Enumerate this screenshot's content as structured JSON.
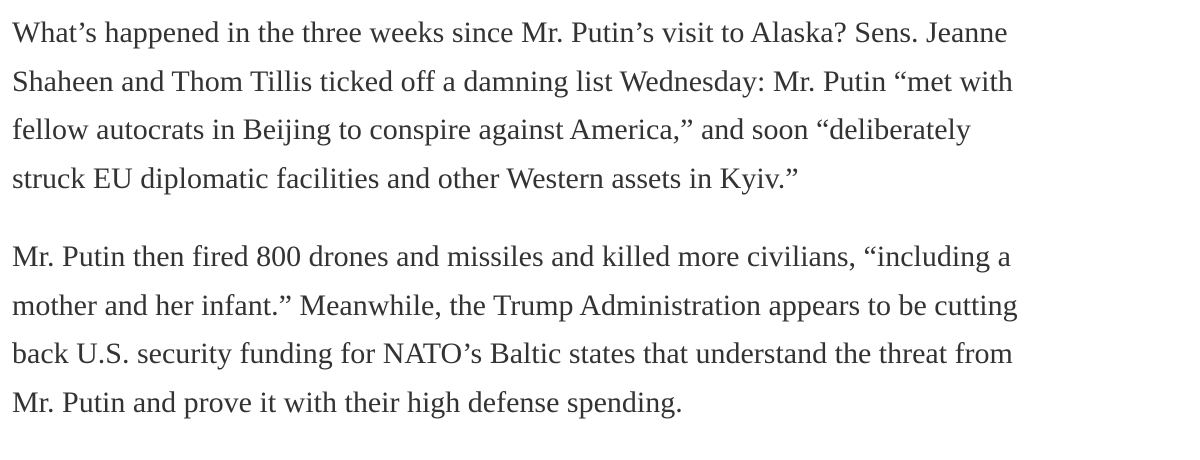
{
  "article": {
    "paragraphs": [
      {
        "lines": [
          "What’s happened in the three weeks since Mr. Putin’s visit to Alaska? Sens. Jeanne",
          "Shaheen and Thom Tillis ticked off a damning list Wednesday: Mr. Putin “met with",
          "fellow autocrats in Beijing to conspire against America,” and soon “deliberately",
          "struck EU diplomatic facilities and other Western assets in Kyiv.”"
        ]
      },
      {
        "lines": [
          "Mr. Putin then fired 800 drones and missiles and killed more civilians, “including a",
          "mother and her infant.” Meanwhile, the Trump Administration appears to be cutting",
          "back U.S. security funding for NATO’s Baltic states that understand the threat from",
          "Mr. Putin and prove it with their high defense spending."
        ]
      }
    ]
  }
}
